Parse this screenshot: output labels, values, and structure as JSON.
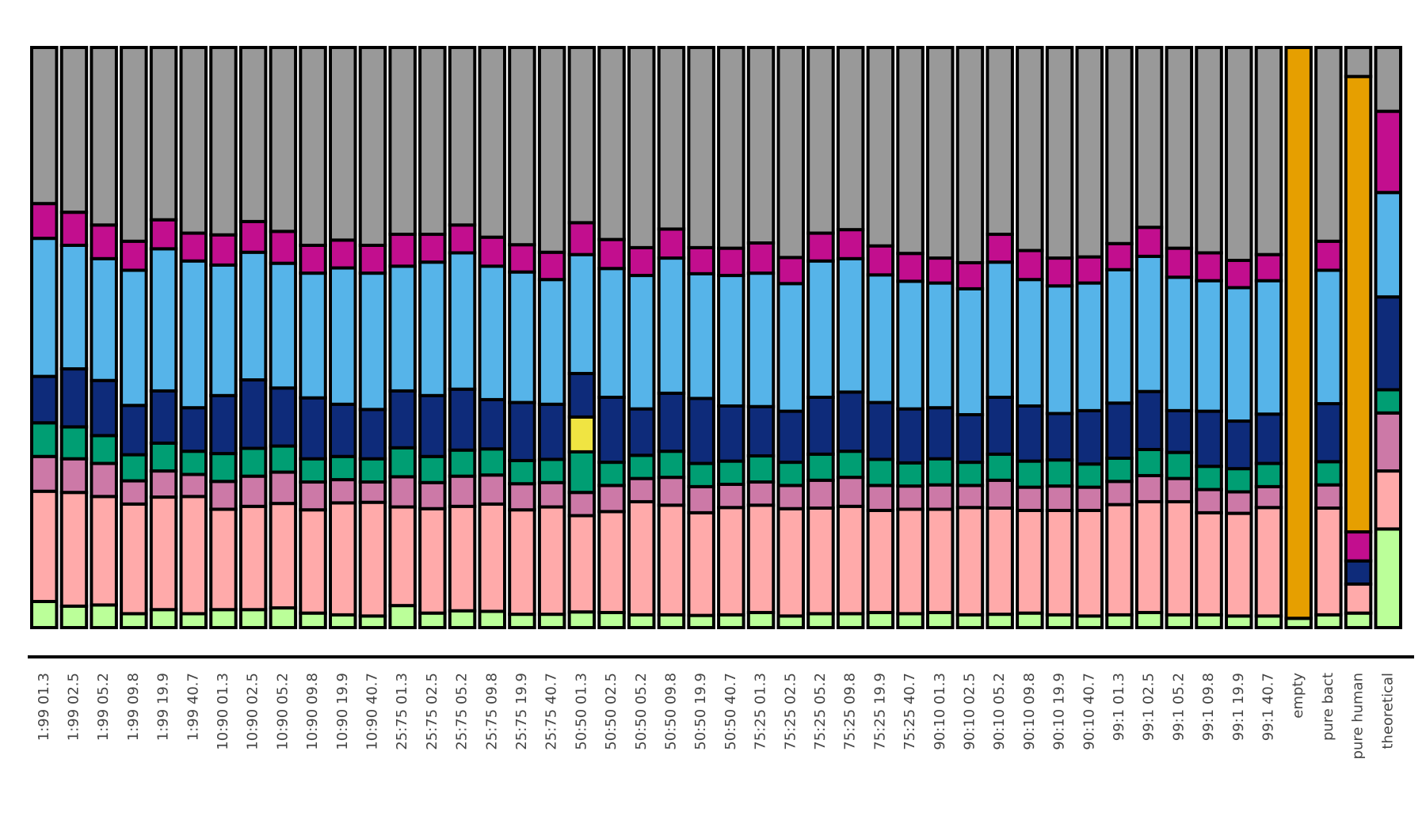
{
  "chart_data": {
    "type": "bar",
    "stacked": true,
    "normalized": true,
    "title": "",
    "xlabel": "",
    "ylabel": "",
    "ylim": [
      0,
      1
    ],
    "grid": false,
    "legend": "none",
    "categories": [
      "1:99 01.3",
      "1:99 02.5",
      "1:99 05.2",
      "1:99 09.8",
      "1:99 19.9",
      "1:99 40.7",
      "10:90 01.3",
      "10:90 02.5",
      "10:90 05.2",
      "10:90 09.8",
      "10:90 19.9",
      "10:90 40.7",
      "25:75 01.3",
      "25:75 02.5",
      "25:75 05.2",
      "25:75 09.8",
      "25:75 19.9",
      "25:75 40.7",
      "50:50 01.3",
      "50:50 02.5",
      "50:50 05.2",
      "50:50 09.8",
      "50:50 19.9",
      "50:50 40.7",
      "75:25 01.3",
      "75:25 02.5",
      "75:25 05.2",
      "75:25 09.8",
      "75:25 19.9",
      "75:25 40.7",
      "90:10 01.3",
      "90:10 02.5",
      "90:10 05.2",
      "90:10 09.8",
      "90:10 19.9",
      "90:10 40.7",
      "99:1 01.3",
      "99:1 02.5",
      "99:1 05.2",
      "99:1 09.8",
      "99:1 19.9",
      "99:1 40.7",
      "empty",
      "pure bact",
      "pure human",
      "theoretical"
    ],
    "series": [
      {
        "color": "#bbff99",
        "values": [
          0.045,
          0.037,
          0.039,
          0.024,
          0.031,
          0.024,
          0.031,
          0.031,
          0.034,
          0.025,
          0.022,
          0.02,
          0.038,
          0.025,
          0.029,
          0.028,
          0.023,
          0.023,
          0.027,
          0.026,
          0.022,
          0.022,
          0.021,
          0.022,
          0.026,
          0.02,
          0.024,
          0.024,
          0.026,
          0.024,
          0.026,
          0.022,
          0.023,
          0.025,
          0.022,
          0.02,
          0.022,
          0.026,
          0.022,
          0.022,
          0.02,
          0.02,
          0.016,
          0.022,
          0.025,
          0.17
        ]
      },
      {
        "color": "#ffaaaa",
        "values": [
          0.19,
          0.196,
          0.187,
          0.189,
          0.194,
          0.202,
          0.173,
          0.178,
          0.18,
          0.178,
          0.193,
          0.196,
          0.17,
          0.18,
          0.18,
          0.185,
          0.18,
          0.185,
          0.166,
          0.174,
          0.195,
          0.189,
          0.177,
          0.185,
          0.185,
          0.185,
          0.182,
          0.185,
          0.176,
          0.18,
          0.178,
          0.185,
          0.183,
          0.177,
          0.18,
          0.182,
          0.19,
          0.191,
          0.195,
          0.176,
          0.177,
          0.187,
          0.0,
          0.184,
          0.05,
          0.1
        ]
      },
      {
        "color": "#cc79a7",
        "values": [
          0.06,
          0.058,
          0.057,
          0.04,
          0.045,
          0.038,
          0.048,
          0.052,
          0.054,
          0.048,
          0.04,
          0.035,
          0.052,
          0.045,
          0.052,
          0.05,
          0.045,
          0.042,
          0.04,
          0.045,
          0.04,
          0.048,
          0.045,
          0.04,
          0.04,
          0.04,
          0.048,
          0.05,
          0.043,
          0.04,
          0.042,
          0.038,
          0.048,
          0.04,
          0.042,
          0.04,
          0.04,
          0.045,
          0.04,
          0.04,
          0.037,
          0.036,
          0.0,
          0.04,
          0.0,
          0.1
        ]
      },
      {
        "color": "#009e73",
        "values": [
          0.058,
          0.055,
          0.048,
          0.045,
          0.048,
          0.04,
          0.048,
          0.048,
          0.045,
          0.04,
          0.04,
          0.04,
          0.05,
          0.045,
          0.045,
          0.045,
          0.04,
          0.04,
          0.07,
          0.04,
          0.04,
          0.045,
          0.04,
          0.04,
          0.045,
          0.04,
          0.045,
          0.045,
          0.045,
          0.04,
          0.045,
          0.04,
          0.045,
          0.045,
          0.045,
          0.04,
          0.04,
          0.045,
          0.045,
          0.04,
          0.04,
          0.04,
          0.0,
          0.04,
          0.0,
          0.04
        ]
      },
      {
        "color": "#f0e442",
        "values": [
          0,
          0,
          0,
          0,
          0,
          0,
          0,
          0,
          0,
          0,
          0,
          0,
          0,
          0,
          0,
          0,
          0,
          0,
          0.06,
          0,
          0,
          0,
          0,
          0,
          0,
          0,
          0,
          0,
          0,
          0,
          0,
          0,
          0,
          0,
          0,
          0,
          0,
          0,
          0,
          0,
          0,
          0,
          0,
          0,
          0,
          0
        ]
      },
      {
        "color": "#0e2b7a",
        "values": [
          0.08,
          0.1,
          0.095,
          0.085,
          0.09,
          0.075,
          0.1,
          0.118,
          0.1,
          0.105,
          0.09,
          0.085,
          0.098,
          0.105,
          0.105,
          0.085,
          0.1,
          0.095,
          0.075,
          0.112,
          0.08,
          0.1,
          0.112,
          0.095,
          0.085,
          0.088,
          0.098,
          0.102,
          0.098,
          0.093,
          0.088,
          0.082,
          0.098,
          0.095,
          0.08,
          0.092,
          0.095,
          0.1,
          0.072,
          0.095,
          0.082,
          0.085,
          0.0,
          0.1,
          0.04,
          0.16
        ]
      },
      {
        "color": "#56b4e9",
        "values": [
          0.238,
          0.213,
          0.21,
          0.233,
          0.245,
          0.253,
          0.225,
          0.22,
          0.215,
          0.215,
          0.235,
          0.235,
          0.215,
          0.23,
          0.235,
          0.23,
          0.225,
          0.215,
          0.205,
          0.222,
          0.23,
          0.233,
          0.215,
          0.225,
          0.23,
          0.22,
          0.235,
          0.23,
          0.22,
          0.22,
          0.215,
          0.217,
          0.233,
          0.218,
          0.22,
          0.22,
          0.23,
          0.233,
          0.23,
          0.225,
          0.23,
          0.23,
          0.0,
          0.23,
          0.0,
          0.18
        ]
      },
      {
        "color": "#c20e8e",
        "values": [
          0.06,
          0.057,
          0.058,
          0.05,
          0.05,
          0.048,
          0.052,
          0.053,
          0.055,
          0.048,
          0.048,
          0.048,
          0.055,
          0.048,
          0.048,
          0.05,
          0.047,
          0.047,
          0.055,
          0.05,
          0.048,
          0.05,
          0.045,
          0.047,
          0.052,
          0.045,
          0.048,
          0.05,
          0.05,
          0.048,
          0.043,
          0.045,
          0.048,
          0.05,
          0.048,
          0.045,
          0.045,
          0.05,
          0.05,
          0.048,
          0.047,
          0.045,
          0.0,
          0.05,
          0.05,
          0.14
        ]
      },
      {
        "color": "#e69f00",
        "values": [
          0,
          0,
          0,
          0,
          0,
          0,
          0,
          0,
          0,
          0,
          0,
          0,
          0,
          0,
          0,
          0,
          0,
          0,
          0,
          0,
          0,
          0,
          0,
          0,
          0,
          0,
          0,
          0,
          0,
          0,
          0,
          0,
          0,
          0,
          0,
          0,
          0,
          0,
          0,
          0,
          0,
          0,
          0.984,
          0,
          0.785,
          0
        ]
      },
      {
        "color": "#999999",
        "values": [
          0.269,
          0.284,
          0.306,
          0.334,
          0.297,
          0.32,
          0.323,
          0.3,
          0.317,
          0.341,
          0.332,
          0.341,
          0.322,
          0.322,
          0.306,
          0.327,
          0.34,
          0.353,
          0.302,
          0.331,
          0.345,
          0.313,
          0.345,
          0.346,
          0.337,
          0.362,
          0.32,
          0.314,
          0.342,
          0.355,
          0.363,
          0.371,
          0.322,
          0.35,
          0.363,
          0.361,
          0.338,
          0.31,
          0.346,
          0.354,
          0.367,
          0.357,
          0.0,
          0.334,
          0.05,
          0.11
        ]
      }
    ]
  }
}
